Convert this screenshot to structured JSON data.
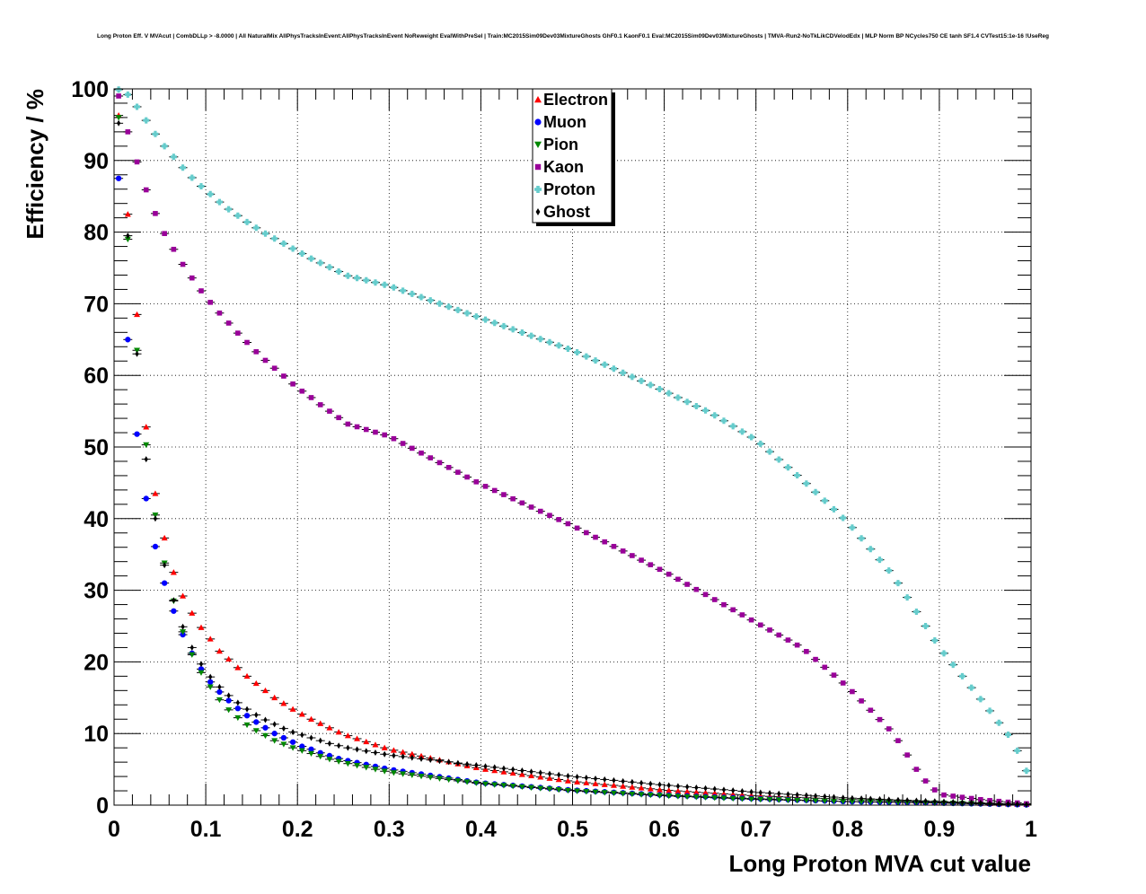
{
  "chart_data": {
    "type": "scatter",
    "title": "Long Proton Eff. V MVAcut | CombDLLp > -8.0000 | All NaturalMix AllPhysTracksInEvent:AllPhysTracksInEvent NoReweight EvalWithPreSel | Train:MC2015Sim09Dev03MixtureGhosts GhF0.1 KaonF0.1 Eval:MC2015Sim09Dev03MixtureGhosts | TMVA-Run2-NoTkLikCDVelodEdx | MLP Norm BP NCycles750 CE tanh SF1.4 CVTest15:1e-16 !UseReg",
    "xlabel": "Long Proton MVA cut value",
    "ylabel": "Efficiency / %",
    "xlim": [
      0,
      1
    ],
    "ylim": [
      0,
      100
    ],
    "x_ticks": [
      "0",
      "0.1",
      "0.2",
      "0.3",
      "0.4",
      "0.5",
      "0.6",
      "0.7",
      "0.8",
      "0.9",
      "1"
    ],
    "y_ticks": [
      "0",
      "10",
      "20",
      "30",
      "40",
      "50",
      "60",
      "70",
      "80",
      "90",
      "100"
    ],
    "grid": true,
    "legend_position": "top-center",
    "x_step": 0.01,
    "x_start": 0.005,
    "series": [
      {
        "name": "Electron",
        "color": "#ff0000",
        "marker": "triangle-up",
        "points": [
          [
            0.005,
            96.3
          ],
          [
            0.015,
            82.5
          ],
          [
            0.025,
            68.5
          ],
          [
            0.035,
            52.8
          ],
          [
            0.045,
            43.5
          ],
          [
            0.055,
            37.3
          ],
          [
            0.065,
            32.5
          ],
          [
            0.075,
            29.2
          ],
          [
            0.085,
            26.8
          ],
          [
            0.095,
            24.8
          ],
          [
            0.105,
            23.2
          ],
          [
            0.115,
            21.5
          ],
          [
            0.125,
            20.4
          ],
          [
            0.135,
            19.2
          ],
          [
            0.145,
            18.0
          ],
          [
            0.155,
            17.0
          ],
          [
            0.165,
            16.0
          ],
          [
            0.175,
            15.0
          ],
          [
            0.185,
            14.2
          ],
          [
            0.195,
            13.4
          ],
          [
            0.205,
            12.7
          ],
          [
            0.215,
            12.0
          ],
          [
            0.225,
            11.4
          ],
          [
            0.235,
            10.8
          ],
          [
            0.245,
            10.2
          ],
          [
            0.255,
            9.7
          ],
          [
            0.3,
            7.8
          ],
          [
            0.4,
            5.1
          ],
          [
            0.5,
            3.3
          ],
          [
            0.6,
            2.1
          ],
          [
            0.7,
            1.3
          ],
          [
            0.8,
            0.8
          ],
          [
            0.9,
            0.4
          ],
          [
            0.995,
            0.1
          ]
        ]
      },
      {
        "name": "Muon",
        "color": "#0000ff",
        "marker": "circle",
        "points": [
          [
            0.005,
            87.5
          ],
          [
            0.015,
            65.0
          ],
          [
            0.025,
            51.8
          ],
          [
            0.035,
            42.8
          ],
          [
            0.045,
            36.1
          ],
          [
            0.055,
            31.0
          ],
          [
            0.065,
            27.1
          ],
          [
            0.075,
            23.8
          ],
          [
            0.085,
            21.2
          ],
          [
            0.095,
            19.0
          ],
          [
            0.105,
            17.2
          ],
          [
            0.115,
            15.8
          ],
          [
            0.125,
            14.6
          ],
          [
            0.135,
            13.5
          ],
          [
            0.145,
            12.5
          ],
          [
            0.155,
            11.6
          ],
          [
            0.165,
            10.8
          ],
          [
            0.175,
            10.0
          ],
          [
            0.185,
            9.4
          ],
          [
            0.195,
            8.8
          ],
          [
            0.205,
            8.2
          ],
          [
            0.215,
            7.8
          ],
          [
            0.225,
            7.3
          ],
          [
            0.235,
            6.9
          ],
          [
            0.245,
            6.5
          ],
          [
            0.255,
            6.2
          ],
          [
            0.3,
            5.0
          ],
          [
            0.4,
            3.1
          ],
          [
            0.5,
            2.1
          ],
          [
            0.6,
            1.4
          ],
          [
            0.7,
            0.9
          ],
          [
            0.8,
            0.5
          ],
          [
            0.9,
            0.3
          ],
          [
            0.995,
            0.05
          ]
        ]
      },
      {
        "name": "Pion",
        "color": "#008800",
        "marker": "triangle-down",
        "points": [
          [
            0.005,
            96.0
          ],
          [
            0.015,
            79.0
          ],
          [
            0.025,
            63.5
          ],
          [
            0.035,
            50.3
          ],
          [
            0.045,
            40.5
          ],
          [
            0.055,
            33.8
          ],
          [
            0.065,
            28.5
          ],
          [
            0.075,
            24.2
          ],
          [
            0.085,
            21.0
          ],
          [
            0.095,
            18.5
          ],
          [
            0.105,
            16.5
          ],
          [
            0.115,
            14.7
          ],
          [
            0.125,
            13.3
          ],
          [
            0.135,
            12.2
          ],
          [
            0.145,
            11.2
          ],
          [
            0.155,
            10.4
          ],
          [
            0.165,
            9.7
          ],
          [
            0.175,
            9.0
          ],
          [
            0.185,
            8.5
          ],
          [
            0.195,
            8.0
          ],
          [
            0.205,
            7.6
          ],
          [
            0.215,
            7.2
          ],
          [
            0.225,
            6.8
          ],
          [
            0.235,
            6.4
          ],
          [
            0.245,
            6.1
          ],
          [
            0.255,
            5.8
          ],
          [
            0.3,
            4.6
          ],
          [
            0.4,
            3.0
          ],
          [
            0.5,
            2.0
          ],
          [
            0.6,
            1.3
          ],
          [
            0.7,
            0.8
          ],
          [
            0.8,
            0.5
          ],
          [
            0.9,
            0.3
          ],
          [
            0.995,
            0.05
          ]
        ]
      },
      {
        "name": "Kaon",
        "color": "#990099",
        "marker": "square",
        "points": [
          [
            0.005,
            99.0
          ],
          [
            0.015,
            94.0
          ],
          [
            0.025,
            89.8
          ],
          [
            0.035,
            85.9
          ],
          [
            0.045,
            82.6
          ],
          [
            0.055,
            79.8
          ],
          [
            0.065,
            77.6
          ],
          [
            0.075,
            75.5
          ],
          [
            0.085,
            73.6
          ],
          [
            0.095,
            71.8
          ],
          [
            0.105,
            70.2
          ],
          [
            0.115,
            68.7
          ],
          [
            0.125,
            67.3
          ],
          [
            0.135,
            65.9
          ],
          [
            0.145,
            64.6
          ],
          [
            0.155,
            63.3
          ],
          [
            0.165,
            62.1
          ],
          [
            0.175,
            61.0
          ],
          [
            0.185,
            59.9
          ],
          [
            0.195,
            58.8
          ],
          [
            0.205,
            57.8
          ],
          [
            0.215,
            56.9
          ],
          [
            0.225,
            55.9
          ],
          [
            0.235,
            55.0
          ],
          [
            0.245,
            54.1
          ],
          [
            0.255,
            53.2
          ],
          [
            0.3,
            51.5
          ],
          [
            0.4,
            44.8
          ],
          [
            0.5,
            39.0
          ],
          [
            0.6,
            32.6
          ],
          [
            0.7,
            25.5
          ],
          [
            0.75,
            22.0
          ],
          [
            0.8,
            16.5
          ],
          [
            0.85,
            10.0
          ],
          [
            0.88,
            4.0
          ],
          [
            0.9,
            1.5
          ],
          [
            0.95,
            0.7
          ],
          [
            0.995,
            0.2
          ]
        ]
      },
      {
        "name": "Proton",
        "color": "#66cccc",
        "marker": "cross",
        "points": [
          [
            0.005,
            99.9
          ],
          [
            0.015,
            99.2
          ],
          [
            0.025,
            97.5
          ],
          [
            0.035,
            95.6
          ],
          [
            0.045,
            93.7
          ],
          [
            0.055,
            92.0
          ],
          [
            0.065,
            90.5
          ],
          [
            0.075,
            89.0
          ],
          [
            0.085,
            87.6
          ],
          [
            0.095,
            86.4
          ],
          [
            0.105,
            85.3
          ],
          [
            0.115,
            84.2
          ],
          [
            0.125,
            83.2
          ],
          [
            0.135,
            82.3
          ],
          [
            0.145,
            81.4
          ],
          [
            0.155,
            80.6
          ],
          [
            0.165,
            79.8
          ],
          [
            0.175,
            79.1
          ],
          [
            0.185,
            78.4
          ],
          [
            0.195,
            77.7
          ],
          [
            0.205,
            77.0
          ],
          [
            0.215,
            76.3
          ],
          [
            0.225,
            75.7
          ],
          [
            0.235,
            75.1
          ],
          [
            0.245,
            74.5
          ],
          [
            0.255,
            73.9
          ],
          [
            0.3,
            72.5
          ],
          [
            0.4,
            68.0
          ],
          [
            0.5,
            63.5
          ],
          [
            0.6,
            57.8
          ],
          [
            0.65,
            54.8
          ],
          [
            0.7,
            51.0
          ],
          [
            0.75,
            45.5
          ],
          [
            0.8,
            39.5
          ],
          [
            0.85,
            32.0
          ],
          [
            0.9,
            22.0
          ],
          [
            0.95,
            14.0
          ],
          [
            0.98,
            9.0
          ],
          [
            0.995,
            4.8
          ]
        ]
      },
      {
        "name": "Ghost",
        "color": "#000000",
        "marker": "diamond",
        "points": [
          [
            0.005,
            95.2
          ],
          [
            0.015,
            79.5
          ],
          [
            0.025,
            63.0
          ],
          [
            0.035,
            48.3
          ],
          [
            0.045,
            40.0
          ],
          [
            0.055,
            33.5
          ],
          [
            0.065,
            28.6
          ],
          [
            0.075,
            24.9
          ],
          [
            0.085,
            22.0
          ],
          [
            0.095,
            19.7
          ],
          [
            0.105,
            17.9
          ],
          [
            0.115,
            16.5
          ],
          [
            0.125,
            15.3
          ],
          [
            0.135,
            14.3
          ],
          [
            0.145,
            13.4
          ],
          [
            0.155,
            12.6
          ],
          [
            0.165,
            11.9
          ],
          [
            0.175,
            11.3
          ],
          [
            0.185,
            10.7
          ],
          [
            0.195,
            10.2
          ],
          [
            0.205,
            9.8
          ],
          [
            0.215,
            9.4
          ],
          [
            0.225,
            9.0
          ],
          [
            0.235,
            8.6
          ],
          [
            0.245,
            8.3
          ],
          [
            0.255,
            8.0
          ],
          [
            0.3,
            7.0
          ],
          [
            0.4,
            5.5
          ],
          [
            0.5,
            4.0
          ],
          [
            0.6,
            2.8
          ],
          [
            0.7,
            1.8
          ],
          [
            0.8,
            1.0
          ],
          [
            0.9,
            0.5
          ],
          [
            0.995,
            0.1
          ]
        ]
      }
    ]
  }
}
